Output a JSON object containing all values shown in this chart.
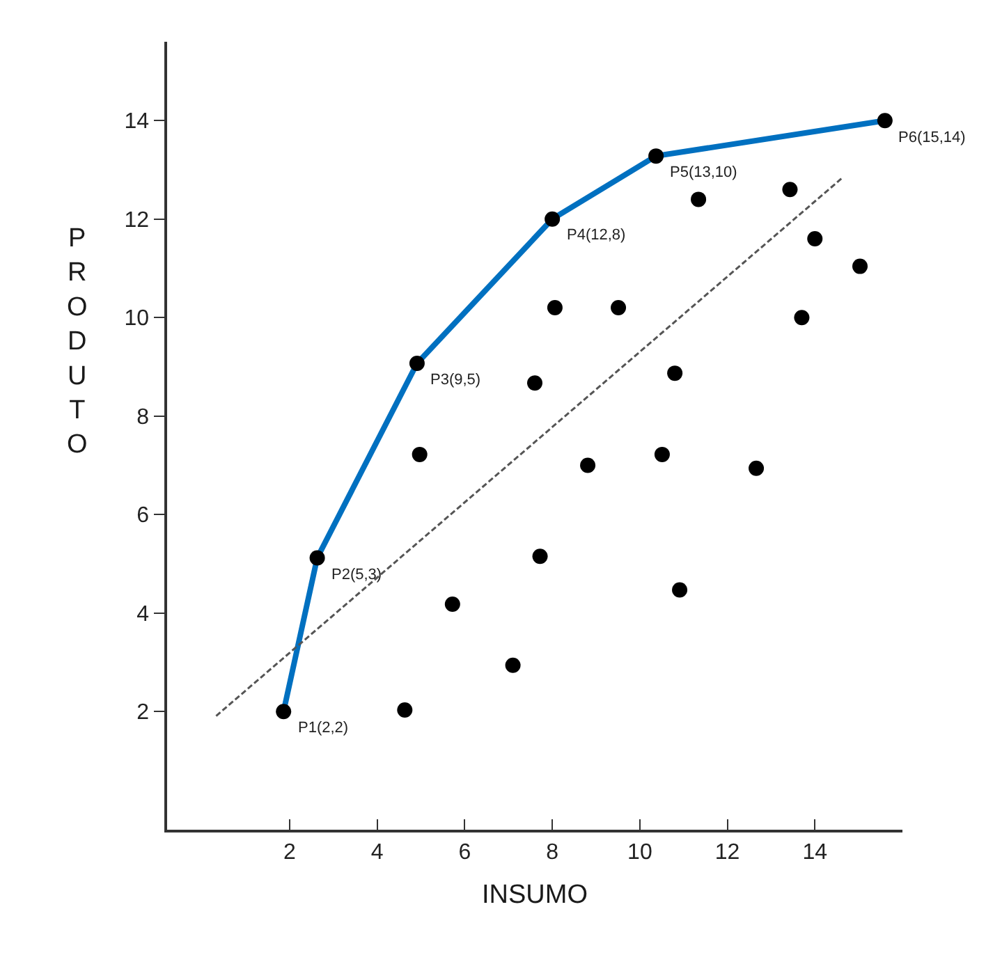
{
  "chart_data": {
    "type": "scatter",
    "xlabel": "INSUMO",
    "ylabel": "PRODUTO",
    "xlim": [
      -0.8,
      16
    ],
    "ylim": [
      -0.4,
      15.6
    ],
    "xticks": [
      2,
      4,
      6,
      8,
      10,
      12,
      14
    ],
    "yticks": [
      2,
      4,
      6,
      8,
      10,
      12,
      14
    ],
    "legend": false,
    "series": [
      {
        "type": "line",
        "color": "#0070c0",
        "marker": "none",
        "line_style": "solid",
        "x": [
          1.86,
          2.63,
          4.91,
          8.0,
          10.37,
          15.6
        ],
        "values": [
          2,
          5.12,
          9.07,
          12,
          13.28,
          14.0
        ]
      },
      {
        "type": "line",
        "color": "#555555",
        "marker": "none",
        "line_style": "dashed",
        "x": [
          0.32,
          14.63
        ],
        "values": [
          1.91,
          12.84
        ]
      },
      {
        "color": "#000000",
        "marker": "circle",
        "x": [
          1.86,
          2.63,
          4.91,
          8.0,
          10.37,
          15.6,
          11.34,
          13.43,
          14.0,
          15.03,
          8.06,
          9.51,
          13.7,
          7.6,
          10.8,
          4.97,
          8.81,
          10.51,
          12.66,
          7.72,
          5.72,
          10.91,
          7.1,
          4.63
        ],
        "values": [
          2,
          5.12,
          9.07,
          12,
          13.28,
          14.0,
          12.4,
          12.6,
          11.6,
          11.04,
          10.2,
          10.2,
          10.0,
          8.67,
          8.87,
          7.22,
          7.0,
          7.22,
          6.94,
          5.15,
          4.18,
          4.47,
          2.94,
          2.03
        ]
      }
    ],
    "annotations": [
      {
        "text": "P1(2,2)",
        "x": 1.86,
        "y": 2
      },
      {
        "text": "P2(5,3)",
        "x": 2.63,
        "y": 5.12
      },
      {
        "text": "P3(9,5)",
        "x": 4.91,
        "y": 9.07
      },
      {
        "text": "P4(12,8)",
        "x": 8.0,
        "y": 12
      },
      {
        "text": "P5(13,10)",
        "x": 10.37,
        "y": 13.28
      },
      {
        "text": "P6(15,14)",
        "x": 15.6,
        "y": 14.0
      }
    ]
  }
}
